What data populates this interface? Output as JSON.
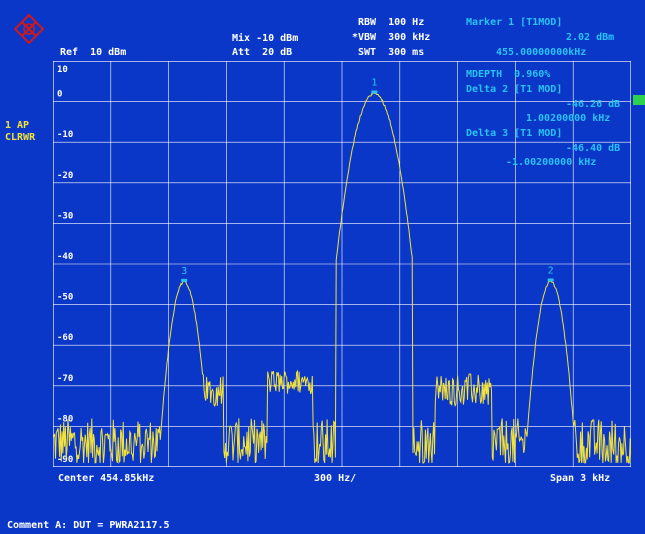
{
  "header": {
    "ref": "Ref  10 dBm",
    "mix": "Mix -10 dBm",
    "att": "Att  20 dB",
    "rbw": "RBW  100 Hz",
    "vbw": "*VBW  300 kHz",
    "swt": "SWT  300 ms"
  },
  "marker_panel": {
    "title": "Marker 1 [T1MOD]",
    "level": "2.02 dBm",
    "freq": "455.00000000kHz",
    "mdepth": "MDEPTH  0.960%",
    "delta2_title": "Delta 2 [T1 MOD]",
    "delta2_level": "-46.26 dB",
    "delta2_freq": "1.00200000 kHz",
    "delta3_title": "Delta 3 [T1 MOD]",
    "delta3_level": "-46.40 dB",
    "delta3_freq": "-1.00200000 kHz"
  },
  "left_labels": {
    "trace": "1 AP",
    "mode": "CLRWR"
  },
  "footer": {
    "center": "Center 454.85kHz",
    "div": "300 Hz/",
    "span": "Span 3 kHz",
    "comment": "Comment A: DUT = PWRA2117.5"
  },
  "colors": {
    "background": "#0a37c8",
    "trace": "#f2e23b",
    "marker_text": "#29c3f5",
    "grid": "#ffffff"
  },
  "chart_data": {
    "type": "line",
    "title": "",
    "xlabel": "",
    "ylabel": "",
    "y_unit": "dBm",
    "xlim": [
      0,
      10
    ],
    "ylim": [
      -90,
      10
    ],
    "y_ticks": [
      10,
      0,
      -10,
      -20,
      -30,
      -40,
      -50,
      -60,
      -70,
      -80,
      -90
    ],
    "grid": true,
    "peaks": [
      {
        "label": "3",
        "x": 2.27,
        "y": -44.4
      },
      {
        "label": "1",
        "x": 5.56,
        "y": 2.0
      },
      {
        "label": "2",
        "x": 8.61,
        "y": -44.3
      }
    ]
  }
}
